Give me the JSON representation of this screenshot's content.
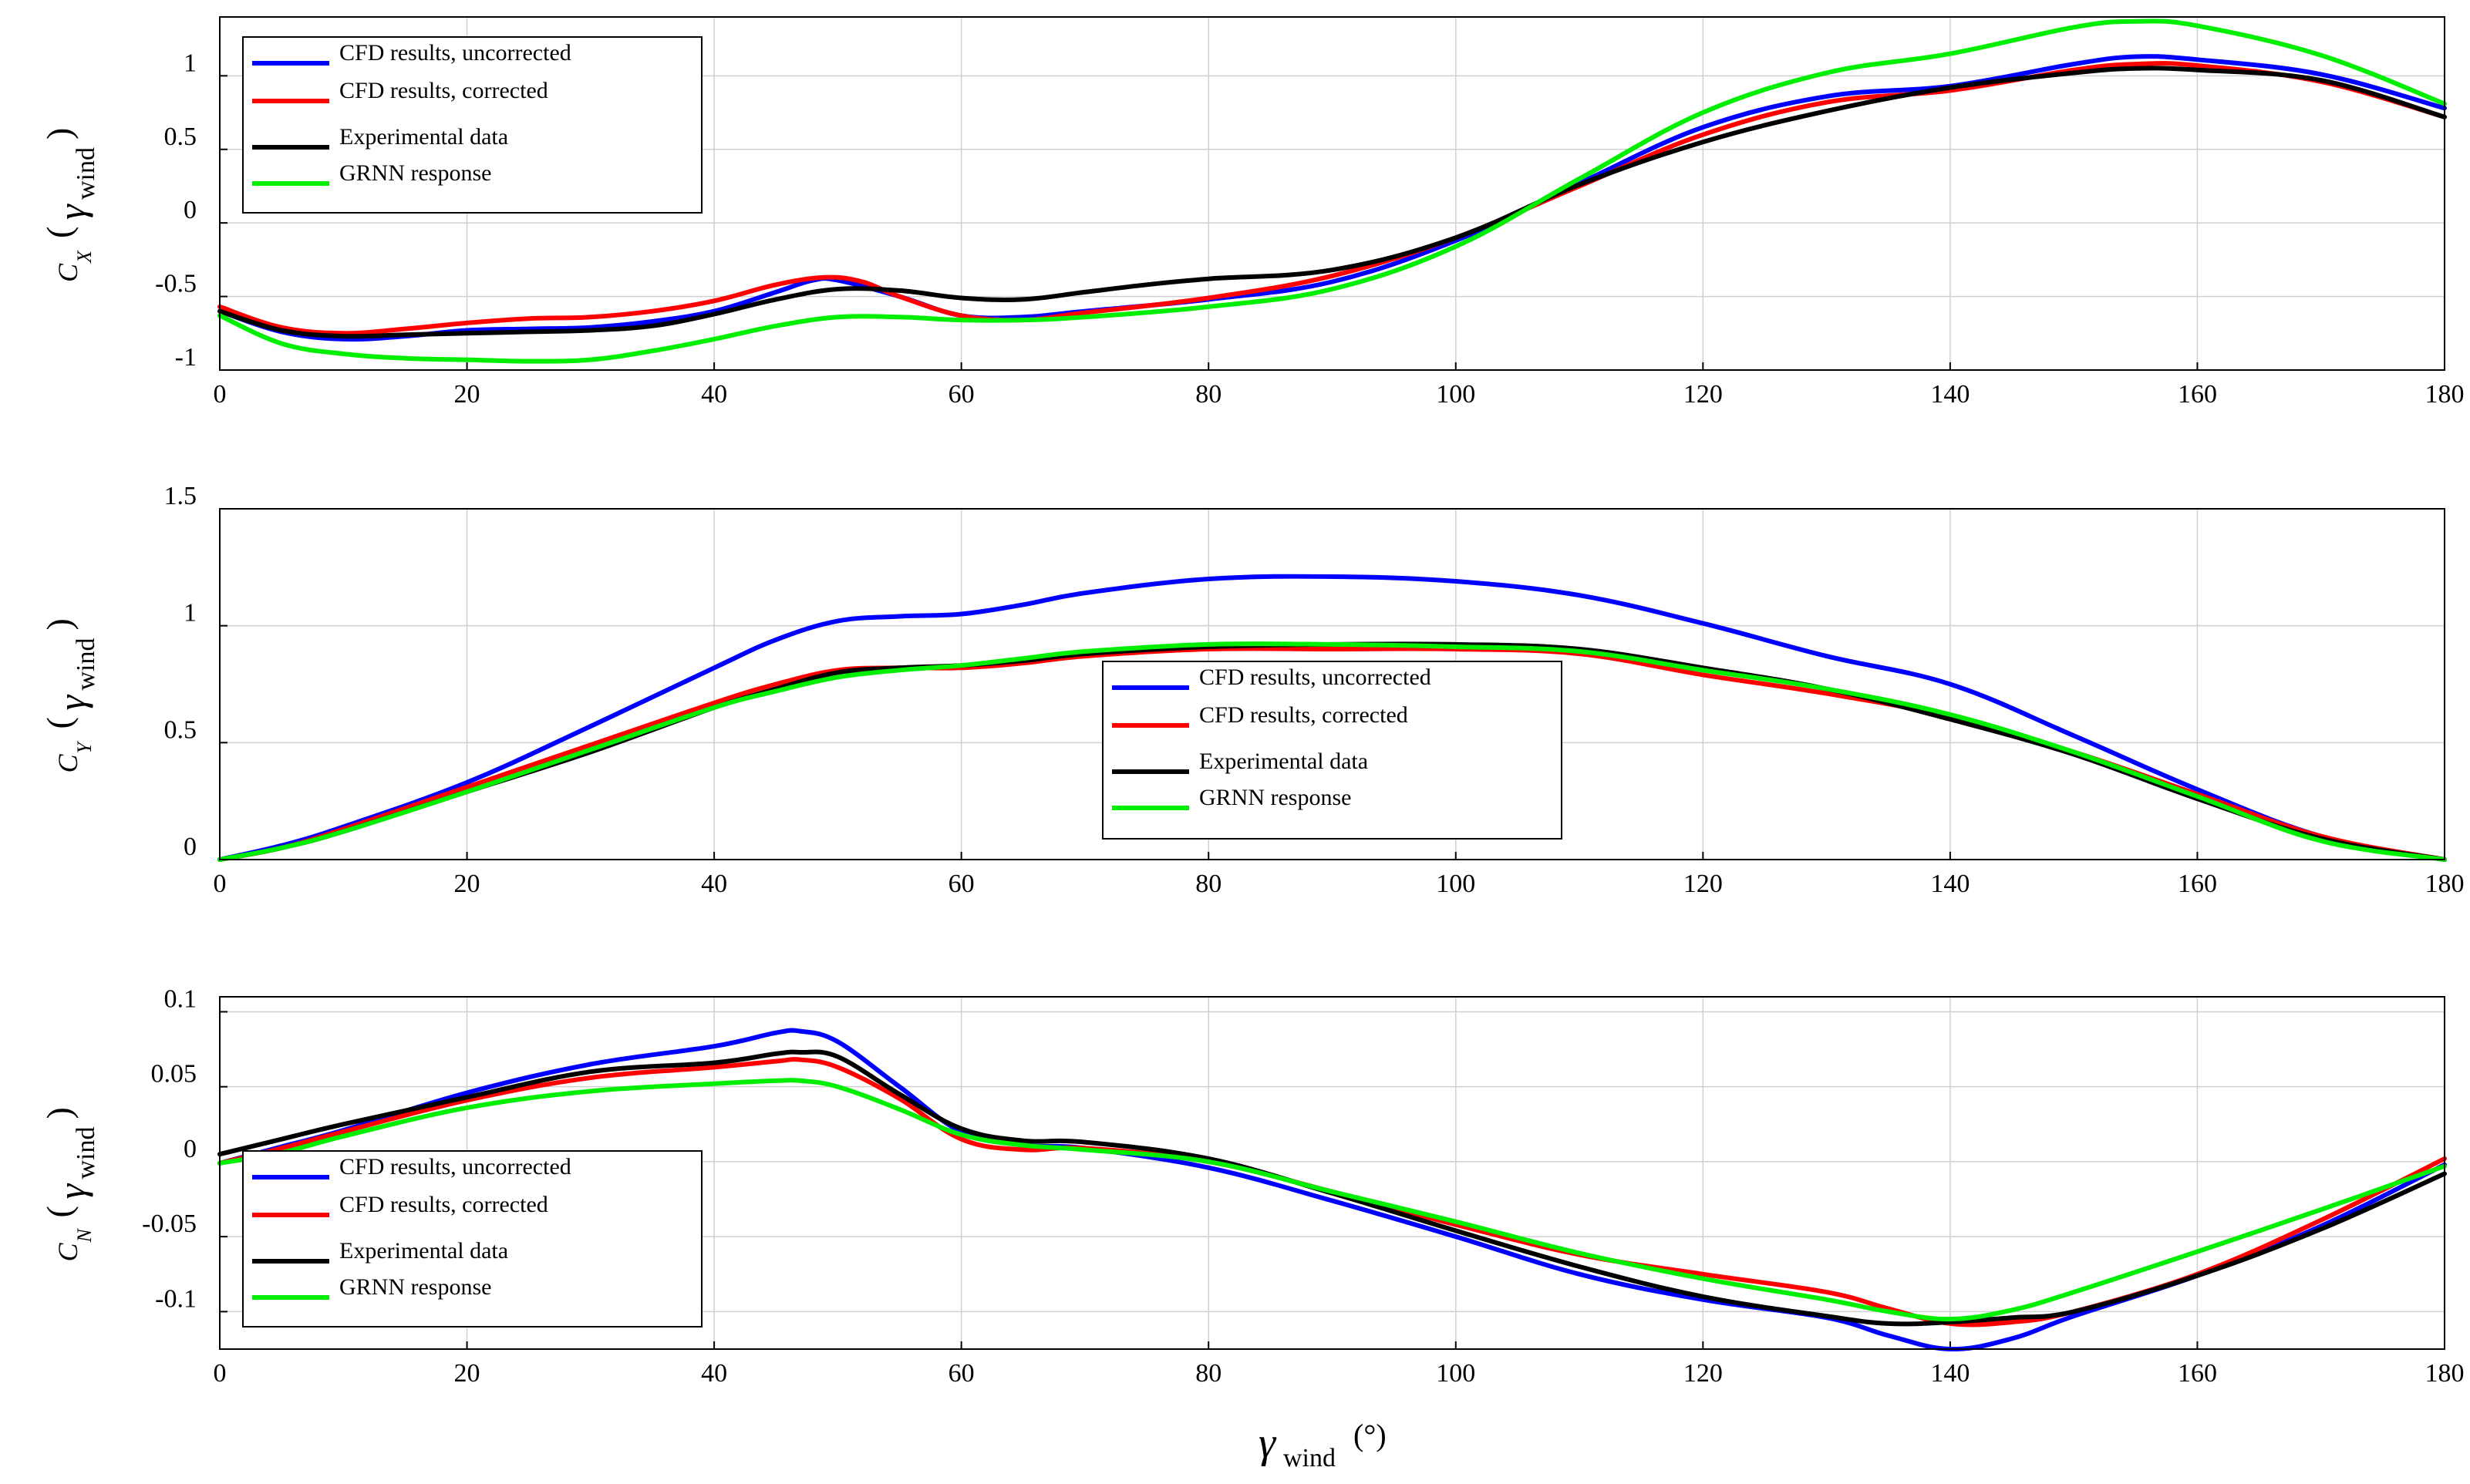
{
  "chart_data": [
    {
      "type": "line",
      "id": "cx",
      "ylabel": {
        "base": "C",
        "sub": "X",
        "arg": "γ",
        "arg_sub": "wind"
      },
      "xlim": [
        0,
        180
      ],
      "ylim": [
        -1,
        1.4
      ],
      "xticks": [
        0,
        20,
        40,
        60,
        80,
        100,
        120,
        140,
        160,
        180
      ],
      "yticks": [
        -1,
        -0.5,
        0,
        0.5,
        1
      ],
      "grid": true,
      "legend_position": "top-left",
      "series": [
        {
          "name": "CFD results, uncorrected",
          "color": "#0000ff",
          "x": [
            0,
            5,
            10,
            15,
            20,
            25,
            30,
            35,
            40,
            45,
            48,
            50,
            55,
            60,
            65,
            70,
            80,
            90,
            100,
            110,
            120,
            130,
            140,
            150,
            155,
            160,
            170,
            180
          ],
          "y": [
            -0.6,
            -0.74,
            -0.79,
            -0.77,
            -0.73,
            -0.72,
            -0.71,
            -0.67,
            -0.6,
            -0.47,
            -0.39,
            -0.39,
            -0.5,
            -0.63,
            -0.64,
            -0.6,
            -0.52,
            -0.4,
            -0.12,
            0.27,
            0.65,
            0.86,
            0.93,
            1.08,
            1.13,
            1.11,
            1.01,
            0.78
          ]
        },
        {
          "name": "CFD results, corrected",
          "color": "#ff0000",
          "x": [
            0,
            5,
            10,
            15,
            20,
            25,
            30,
            35,
            40,
            45,
            49,
            52,
            55,
            60,
            65,
            70,
            80,
            90,
            100,
            110,
            120,
            130,
            140,
            150,
            155,
            160,
            170,
            180
          ],
          "y": [
            -0.57,
            -0.71,
            -0.75,
            -0.72,
            -0.68,
            -0.65,
            -0.64,
            -0.6,
            -0.53,
            -0.42,
            -0.37,
            -0.4,
            -0.5,
            -0.63,
            -0.66,
            -0.61,
            -0.51,
            -0.36,
            -0.1,
            0.25,
            0.6,
            0.82,
            0.9,
            1.04,
            1.08,
            1.07,
            0.96,
            0.72
          ]
        },
        {
          "name": "Experimental data",
          "color": "#000000",
          "x": [
            0,
            5,
            10,
            15,
            20,
            25,
            30,
            35,
            40,
            45,
            50,
            55,
            60,
            65,
            70,
            75,
            80,
            90,
            100,
            110,
            120,
            130,
            140,
            150,
            155,
            160,
            170,
            180
          ],
          "y": [
            -0.6,
            -0.73,
            -0.77,
            -0.76,
            -0.75,
            -0.74,
            -0.73,
            -0.7,
            -0.62,
            -0.52,
            -0.45,
            -0.46,
            -0.51,
            -0.52,
            -0.47,
            -0.42,
            -0.38,
            -0.32,
            -0.1,
            0.26,
            0.55,
            0.76,
            0.92,
            1.02,
            1.05,
            1.04,
            0.97,
            0.72
          ]
        },
        {
          "name": "GRNN response",
          "color": "#00ee00",
          "x": [
            0,
            5,
            10,
            15,
            20,
            25,
            30,
            35,
            40,
            45,
            50,
            55,
            60,
            65,
            70,
            80,
            90,
            100,
            110,
            120,
            130,
            140,
            150,
            155,
            160,
            170,
            180
          ],
          "y": [
            -0.63,
            -0.82,
            -0.89,
            -0.92,
            -0.93,
            -0.94,
            -0.93,
            -0.87,
            -0.79,
            -0.7,
            -0.64,
            -0.64,
            -0.66,
            -0.66,
            -0.64,
            -0.57,
            -0.45,
            -0.16,
            0.3,
            0.75,
            1.02,
            1.15,
            1.33,
            1.37,
            1.34,
            1.14,
            0.81
          ]
        }
      ]
    },
    {
      "type": "line",
      "id": "cy",
      "ylabel": {
        "base": "C",
        "sub": "Y",
        "arg": "γ",
        "arg_sub": "wind"
      },
      "xlim": [
        0,
        180
      ],
      "ylim": [
        0,
        1.5
      ],
      "xticks": [
        0,
        20,
        40,
        60,
        80,
        100,
        120,
        140,
        160,
        180
      ],
      "yticks": [
        0,
        0.5,
        1,
        1.5
      ],
      "grid": true,
      "legend_position": "center",
      "series": [
        {
          "name": "CFD results, uncorrected",
          "color": "#0000ff",
          "x": [
            0,
            5,
            10,
            20,
            30,
            40,
            45,
            50,
            55,
            60,
            65,
            70,
            80,
            90,
            100,
            110,
            120,
            130,
            140,
            150,
            160,
            170,
            180
          ],
          "y": [
            0,
            0.06,
            0.14,
            0.33,
            0.57,
            0.82,
            0.94,
            1.02,
            1.04,
            1.05,
            1.09,
            1.14,
            1.2,
            1.21,
            1.19,
            1.13,
            1.01,
            0.87,
            0.75,
            0.53,
            0.3,
            0.1,
            0
          ]
        },
        {
          "name": "CFD results, corrected",
          "color": "#ff0000",
          "x": [
            0,
            5,
            10,
            20,
            30,
            40,
            45,
            50,
            55,
            60,
            65,
            70,
            80,
            90,
            100,
            110,
            120,
            130,
            140,
            150,
            160,
            170,
            180
          ],
          "y": [
            0,
            0.05,
            0.13,
            0.31,
            0.49,
            0.67,
            0.75,
            0.81,
            0.82,
            0.82,
            0.84,
            0.87,
            0.9,
            0.9,
            0.9,
            0.88,
            0.79,
            0.71,
            0.61,
            0.46,
            0.28,
            0.1,
            0
          ]
        },
        {
          "name": "Experimental data",
          "color": "#000000",
          "x": [
            0,
            5,
            10,
            20,
            30,
            40,
            45,
            50,
            55,
            60,
            65,
            70,
            80,
            90,
            100,
            110,
            120,
            130,
            140,
            150,
            160,
            170,
            180
          ],
          "y": [
            0,
            0.05,
            0.12,
            0.29,
            0.46,
            0.65,
            0.73,
            0.8,
            0.82,
            0.83,
            0.85,
            0.88,
            0.91,
            0.92,
            0.92,
            0.9,
            0.82,
            0.73,
            0.6,
            0.45,
            0.26,
            0.09,
            0
          ]
        },
        {
          "name": "GRNN response",
          "color": "#00ee00",
          "x": [
            0,
            5,
            10,
            20,
            30,
            40,
            45,
            50,
            55,
            60,
            65,
            70,
            80,
            90,
            100,
            110,
            120,
            130,
            140,
            150,
            160,
            170,
            180
          ],
          "y": [
            0,
            0.05,
            0.12,
            0.29,
            0.47,
            0.65,
            0.72,
            0.78,
            0.81,
            0.83,
            0.86,
            0.89,
            0.92,
            0.92,
            0.91,
            0.89,
            0.81,
            0.73,
            0.62,
            0.46,
            0.27,
            0.08,
            0
          ]
        }
      ]
    },
    {
      "type": "line",
      "id": "cn",
      "ylabel": {
        "base": "C",
        "sub": "N",
        "arg": "γ",
        "arg_sub": "wind"
      },
      "xlabel": {
        "base": "γ",
        "sub": "wind",
        "unit": "(°)"
      },
      "xlim": [
        0,
        180
      ],
      "ylim": [
        -0.125,
        0.11
      ],
      "xticks": [
        0,
        20,
        40,
        60,
        80,
        100,
        120,
        140,
        160,
        180
      ],
      "yticks": [
        -0.1,
        -0.05,
        0,
        0.05,
        0.1
      ],
      "grid": true,
      "legend_position": "bottom-left",
      "series": [
        {
          "name": "CFD results, uncorrected",
          "color": "#0000ff",
          "x": [
            0,
            5,
            10,
            20,
            30,
            40,
            45,
            47,
            50,
            55,
            60,
            65,
            70,
            80,
            90,
            100,
            110,
            120,
            130,
            135,
            140,
            145,
            150,
            160,
            170,
            180
          ],
          "y": [
            -0.001,
            0.01,
            0.021,
            0.046,
            0.065,
            0.077,
            0.086,
            0.087,
            0.08,
            0.05,
            0.02,
            0.011,
            0.009,
            -0.004,
            -0.026,
            -0.05,
            -0.075,
            -0.092,
            -0.104,
            -0.116,
            -0.125,
            -0.118,
            -0.103,
            -0.076,
            -0.043,
            -0.002
          ]
        },
        {
          "name": "CFD results, corrected",
          "color": "#ff0000",
          "x": [
            0,
            5,
            10,
            20,
            30,
            40,
            45,
            47,
            50,
            55,
            60,
            65,
            70,
            80,
            90,
            100,
            110,
            120,
            130,
            135,
            140,
            145,
            150,
            160,
            170,
            180
          ],
          "y": [
            -0.001,
            0.009,
            0.02,
            0.041,
            0.056,
            0.063,
            0.067,
            0.068,
            0.063,
            0.042,
            0.015,
            0.008,
            0.009,
            0.0,
            -0.02,
            -0.042,
            -0.062,
            -0.075,
            -0.087,
            -0.098,
            -0.108,
            -0.107,
            -0.1,
            -0.075,
            -0.039,
            0.002
          ]
        },
        {
          "name": "Experimental data",
          "color": "#000000",
          "x": [
            0,
            5,
            10,
            20,
            30,
            40,
            45,
            47,
            50,
            55,
            60,
            65,
            70,
            80,
            90,
            100,
            110,
            120,
            130,
            135,
            140,
            145,
            150,
            160,
            170,
            180
          ],
          "y": [
            0.005,
            0.015,
            0.025,
            0.043,
            0.06,
            0.066,
            0.072,
            0.073,
            0.07,
            0.045,
            0.022,
            0.014,
            0.013,
            0.002,
            -0.021,
            -0.046,
            -0.07,
            -0.09,
            -0.103,
            -0.108,
            -0.107,
            -0.104,
            -0.1,
            -0.076,
            -0.045,
            -0.008
          ]
        },
        {
          "name": "GRNN response",
          "color": "#00ee00",
          "x": [
            0,
            5,
            10,
            20,
            30,
            40,
            45,
            47,
            50,
            55,
            60,
            65,
            70,
            80,
            90,
            100,
            110,
            120,
            130,
            135,
            140,
            145,
            150,
            160,
            170,
            180
          ],
          "y": [
            -0.001,
            0.006,
            0.017,
            0.036,
            0.047,
            0.052,
            0.054,
            0.054,
            0.05,
            0.035,
            0.018,
            0.011,
            0.008,
            0.0,
            -0.02,
            -0.04,
            -0.061,
            -0.078,
            -0.092,
            -0.1,
            -0.105,
            -0.099,
            -0.087,
            -0.06,
            -0.032,
            -0.003
          ]
        }
      ]
    }
  ]
}
